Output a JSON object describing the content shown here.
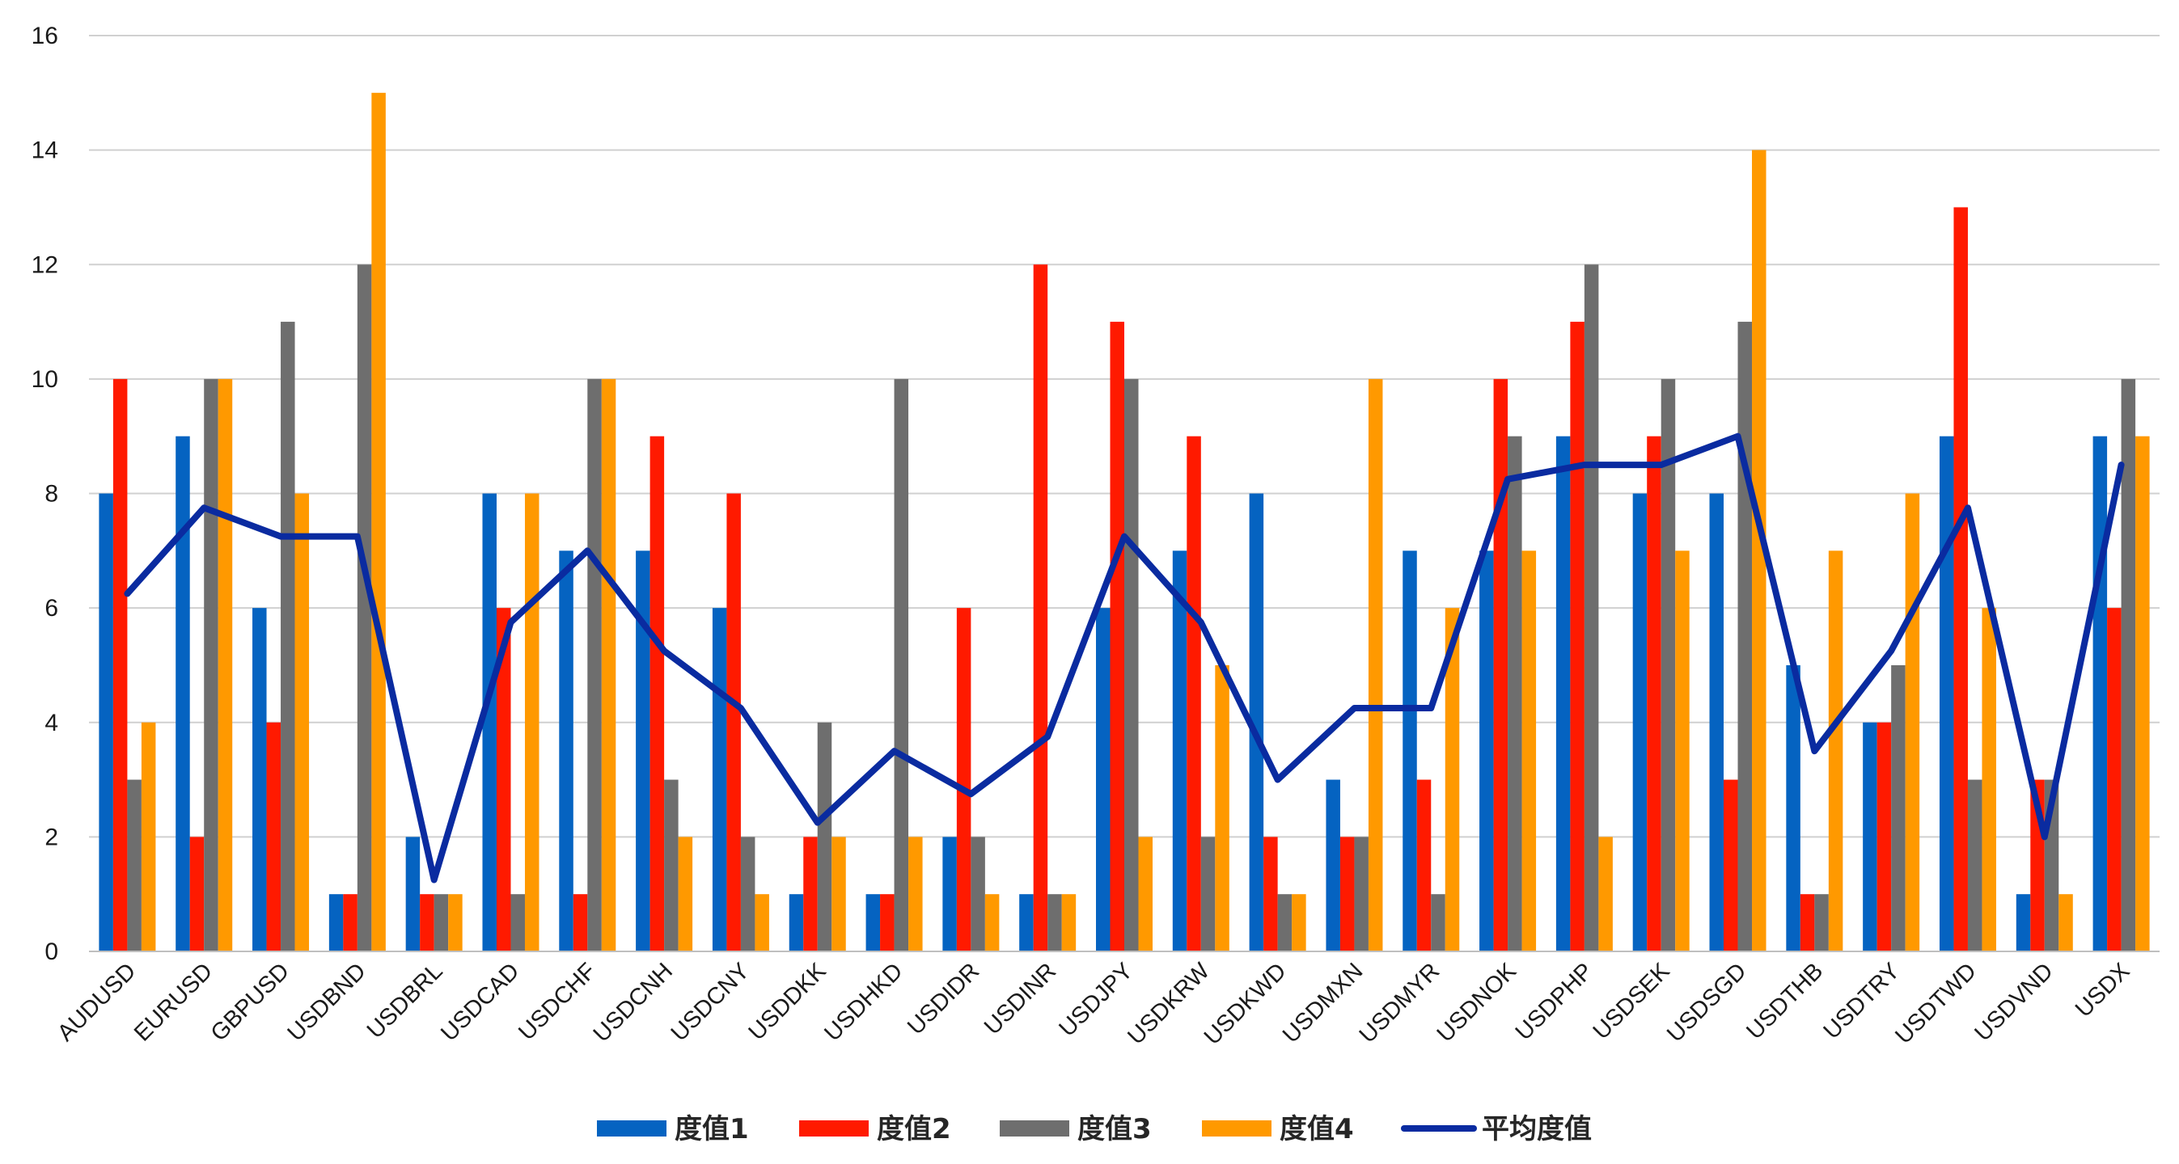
{
  "chart_data": {
    "type": "bar",
    "title": "",
    "xlabel": "",
    "ylabel": "",
    "ylim": [
      0,
      16
    ],
    "yticks": [
      0,
      2,
      4,
      6,
      8,
      10,
      12,
      14,
      16
    ],
    "grid": true,
    "legend_position": "bottom",
    "categories": [
      "AUDUSD",
      "EURUSD",
      "GBPUSD",
      "USDBND",
      "USDBRL",
      "USDCAD",
      "USDCHF",
      "USDCNH",
      "USDCNY",
      "USDDKK",
      "USDHKD",
      "USDIDR",
      "USDINR",
      "USDJPY",
      "USDKRW",
      "USDKWD",
      "USDMXN",
      "USDMYR",
      "USDNOK",
      "USDPHP",
      "USDSEK",
      "USDSGD",
      "USDTHB",
      "USDTRY",
      "USDTWD",
      "USDVND",
      "USDX"
    ],
    "series": [
      {
        "name": "度值1",
        "type": "bar",
        "color": "#0563C1",
        "values": [
          8,
          9,
          6,
          1,
          2,
          8,
          7,
          7,
          6,
          1,
          1,
          2,
          1,
          6,
          7,
          8,
          3,
          7,
          7,
          9,
          8,
          8,
          5,
          4,
          9,
          1,
          9
        ]
      },
      {
        "name": "度值2",
        "type": "bar",
        "color": "#FF1A00",
        "values": [
          10,
          2,
          4,
          1,
          1,
          6,
          1,
          9,
          8,
          2,
          1,
          6,
          12,
          11,
          9,
          2,
          2,
          3,
          10,
          11,
          9,
          3,
          1,
          4,
          13,
          3,
          6
        ]
      },
      {
        "name": "度值3",
        "type": "bar",
        "color": "#6E6E6E",
        "values": [
          3,
          10,
          11,
          12,
          1,
          1,
          10,
          3,
          2,
          4,
          10,
          2,
          1,
          10,
          2,
          1,
          2,
          1,
          9,
          12,
          10,
          11,
          1,
          5,
          3,
          3,
          10
        ]
      },
      {
        "name": "度值4",
        "type": "bar",
        "color": "#FF9900",
        "values": [
          4,
          10,
          8,
          15,
          1,
          8,
          10,
          2,
          1,
          2,
          2,
          1,
          1,
          2,
          5,
          1,
          10,
          6,
          7,
          2,
          7,
          14,
          7,
          8,
          6,
          1,
          9
        ]
      },
      {
        "name": "平均度值",
        "type": "line",
        "color": "#0A2BA0",
        "values": [
          6.25,
          7.75,
          7.25,
          7.25,
          1.25,
          5.75,
          7,
          5.25,
          4.25,
          2.25,
          3.5,
          2.75,
          3.75,
          7.25,
          5.75,
          3,
          4.25,
          4.25,
          8.25,
          8.5,
          8.5,
          9,
          3.5,
          5.25,
          7.75,
          2,
          8.5
        ]
      }
    ]
  }
}
